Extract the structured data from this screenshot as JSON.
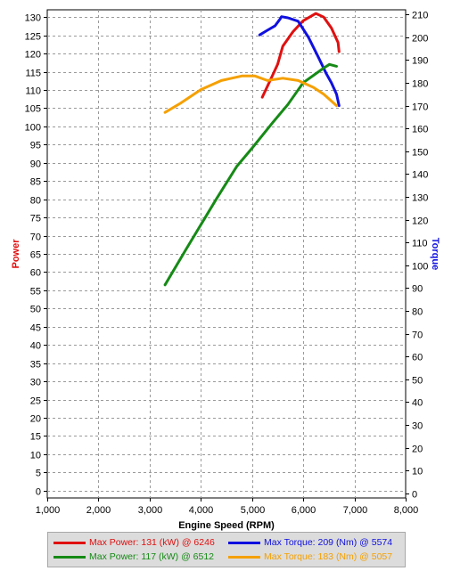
{
  "chart_data": {
    "type": "line",
    "xlabel": "Engine Speed (RPM)",
    "ylabel_left": "Power",
    "ylabel_right": "Torque",
    "xlim": [
      1000,
      8000
    ],
    "ylim_left": [
      -2,
      132
    ],
    "ylim_right": [
      -2,
      212
    ],
    "grid": true,
    "x_ticks": [
      "1,000",
      "2,000",
      "3,000",
      "4,000",
      "5,000",
      "6,000",
      "7,000",
      "8,000"
    ],
    "y_left_ticks": [
      0,
      5,
      10,
      15,
      20,
      25,
      30,
      35,
      40,
      45,
      50,
      55,
      60,
      65,
      70,
      75,
      80,
      85,
      90,
      95,
      100,
      105,
      110,
      115,
      120,
      125,
      130
    ],
    "y_right_ticks": [
      0,
      10,
      20,
      30,
      40,
      50,
      60,
      70,
      80,
      90,
      100,
      110,
      120,
      130,
      140,
      150,
      160,
      170,
      180,
      190,
      200,
      210
    ],
    "series": [
      {
        "name": "Max Power: 131 (kW) @ 6246",
        "axis": "left",
        "color": "#e01010",
        "x": [
          5200,
          5400,
          5500,
          5600,
          5800,
          6000,
          6246,
          6400,
          6550,
          6680,
          6700
        ],
        "y": [
          108,
          114,
          117,
          122,
          126,
          129,
          131,
          130,
          127,
          123,
          120.5
        ]
      },
      {
        "name": "Max Torque: 209 (Nm) @ 5574",
        "axis": "right",
        "color": "#1010e0",
        "x": [
          5150,
          5300,
          5450,
          5550,
          5574,
          5700,
          5900,
          6100,
          6300,
          6450,
          6550,
          6650,
          6700
        ],
        "y": [
          201,
          203,
          205,
          208,
          209,
          208.5,
          207,
          200,
          191,
          184,
          180,
          175,
          170
        ]
      },
      {
        "name": "Max Power: 117 (kW) @ 6512",
        "axis": "left",
        "color": "#168a16",
        "x": [
          3300,
          3700,
          4000,
          4300,
          4700,
          5000,
          5400,
          5700,
          6000,
          6200,
          6400,
          6512,
          6650
        ],
        "y": [
          56.5,
          66,
          73,
          80,
          89,
          94,
          101,
          106,
          112,
          114,
          116,
          117,
          116.5
        ]
      },
      {
        "name": "Max Torque: 183 (Nm) @ 5057",
        "axis": "right",
        "color": "#f5a000",
        "x": [
          3300,
          3600,
          4000,
          4400,
          4800,
          5057,
          5300,
          5600,
          5900,
          6200,
          6400,
          6500,
          6650
        ],
        "y": [
          167,
          171,
          177,
          181,
          183,
          183,
          181,
          182,
          181,
          178,
          175,
          173,
          170
        ]
      }
    ]
  }
}
